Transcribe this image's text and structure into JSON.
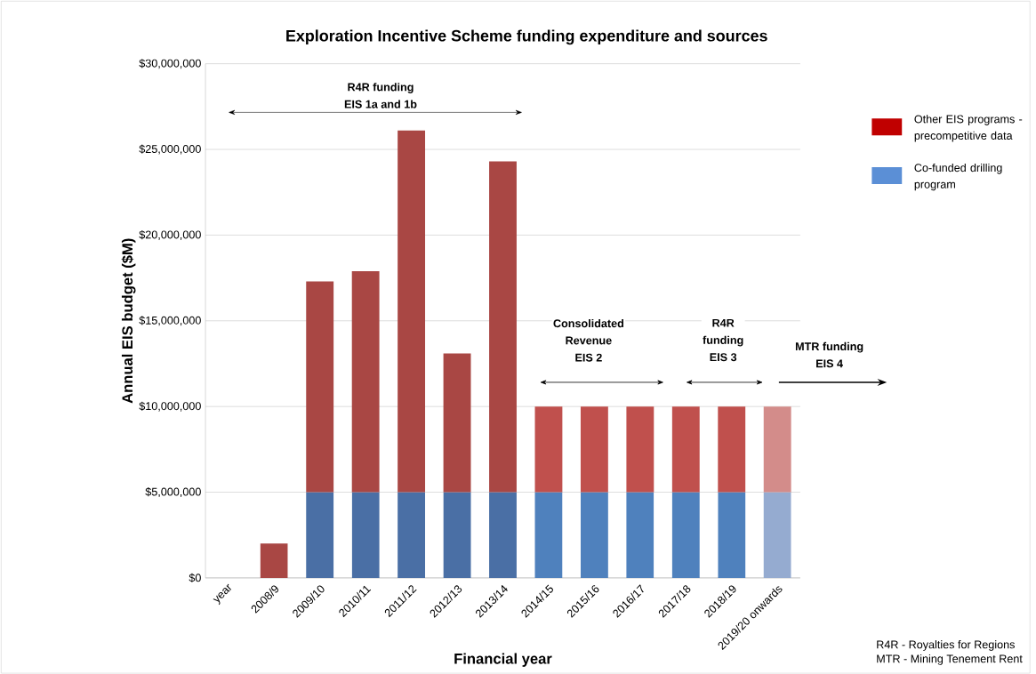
{
  "chart_data": {
    "type": "bar",
    "stacked": true,
    "title": "Exploration Incentive Scheme funding expenditure and sources",
    "xlabel": "Financial year",
    "ylabel": "Annual EIS budget ($M)",
    "categories": [
      "year",
      "2008/9",
      "2009/10",
      "2010/11",
      "2011/12",
      "2012/13",
      "2013/14",
      "2014/15",
      "2015/16",
      "2016/17",
      "2017/18",
      "2018/19",
      "2019/20 onwards"
    ],
    "series": [
      {
        "name": "Co-funded drilling program",
        "color": "#5b8fd6",
        "colors": [
          "#4a6fa5",
          "#4a6fa5",
          "#4a6fa5",
          "#4a6fa5",
          "#4a6fa5",
          "#4a6fa5",
          "#4a6fa5",
          "#4f81bd",
          "#4f81bd",
          "#4f81bd",
          "#4f81bd",
          "#4f81bd",
          "#95abd0"
        ],
        "values": [
          null,
          null,
          5000000,
          5000000,
          5000000,
          5000000,
          5000000,
          5000000,
          5000000,
          5000000,
          5000000,
          5000000,
          5000000
        ]
      },
      {
        "name": "Other EIS programs - precompetitive data",
        "color": "#c00000",
        "colors": [
          "#a94744",
          "#a94744",
          "#a94744",
          "#a94744",
          "#a94744",
          "#a94744",
          "#a94744",
          "#c0504d",
          "#c0504d",
          "#c0504d",
          "#c0504d",
          "#c0504d",
          "#d38c8a"
        ],
        "values": [
          null,
          2000000,
          12300000,
          12900000,
          21100000,
          8100000,
          19300000,
          5000000,
          5000000,
          5000000,
          5000000,
          5000000,
          5000000
        ]
      }
    ],
    "ylim": [
      0,
      30000000
    ],
    "yticks": [
      {
        "value": 0,
        "label": "$0"
      },
      {
        "value": 5000000,
        "label": "$5,000,000"
      },
      {
        "value": 10000000,
        "label": "$10,000,000"
      },
      {
        "value": 15000000,
        "label": "$15,000,000"
      },
      {
        "value": 20000000,
        "label": "$20,000,000"
      },
      {
        "value": 25000000,
        "label": "$25,000,000"
      },
      {
        "value": 30000000,
        "label": "$30,000,000"
      }
    ],
    "grid": "y",
    "legend": "right",
    "annotations": [
      "R4R funding",
      "EIS 1a and 1b",
      "Consolidated",
      "Revenue",
      "EIS 2",
      "R4R",
      "funding",
      "EIS 3",
      "MTR funding",
      "EIS 4",
      "R4R - Royalties for Regions",
      "MTR - Mining Tenement Rent"
    ]
  }
}
